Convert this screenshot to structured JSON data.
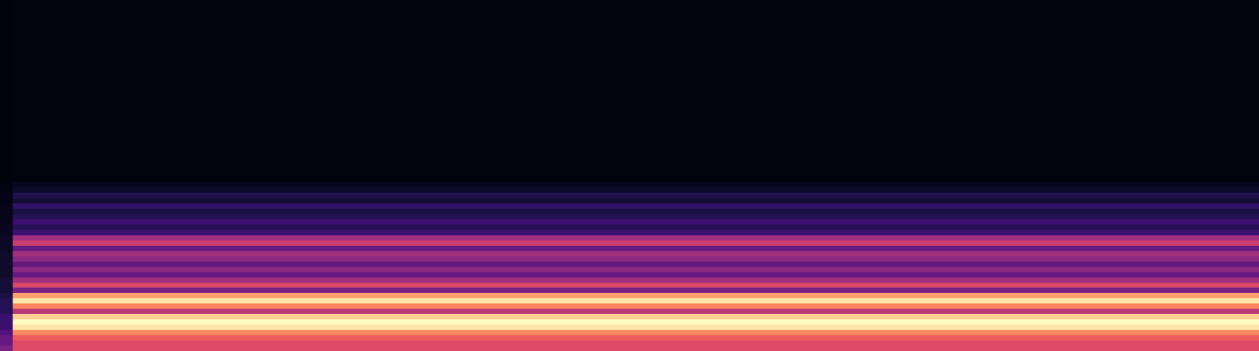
{
  "chart_data": {
    "type": "heatmap",
    "color": "magma",
    "tick_labels": false,
    "grid": false,
    "xlim": [
      0,
      100
    ],
    "ylim": [
      0,
      100
    ],
    "x": [
      0,
      1,
      100
    ],
    "y": [
      0,
      1.5,
      3,
      4.5,
      6,
      7.5,
      9,
      10.5,
      12,
      13.5,
      15,
      16.5,
      18,
      19.5,
      21,
      22.5,
      24,
      25.5,
      27,
      28.5,
      30,
      31.5,
      33,
      34.5,
      36,
      37.5,
      39,
      40.5,
      42,
      43.5,
      45,
      46.5,
      48,
      100
    ],
    "color_range": [
      0,
      1
    ],
    "cells": [
      [
        0.35,
        0.6
      ],
      [
        0.3,
        0.6
      ],
      [
        0.3,
        0.65
      ],
      [
        0.25,
        0.75
      ],
      [
        0.2,
        0.95
      ],
      [
        0.2,
        1.0
      ],
      [
        0.2,
        0.9
      ],
      [
        0.15,
        0.5
      ],
      [
        0.15,
        0.75
      ],
      [
        0.15,
        0.95
      ],
      [
        0.12,
        0.8
      ],
      [
        0.1,
        0.35
      ],
      [
        0.1,
        0.6
      ],
      [
        0.1,
        0.45
      ],
      [
        0.08,
        0.3
      ],
      [
        0.08,
        0.4
      ],
      [
        0.08,
        0.3
      ],
      [
        0.08,
        0.4
      ],
      [
        0.08,
        0.45
      ],
      [
        0.07,
        0.3
      ],
      [
        0.07,
        0.55
      ],
      [
        0.07,
        0.45
      ],
      [
        0.06,
        0.2
      ],
      [
        0.06,
        0.15
      ],
      [
        0.05,
        0.2
      ],
      [
        0.05,
        0.15
      ],
      [
        0.05,
        0.12
      ],
      [
        0.05,
        0.18
      ],
      [
        0.04,
        0.1
      ],
      [
        0.04,
        0.14
      ],
      [
        0.03,
        0.08
      ],
      [
        0.03,
        0.06
      ],
      [
        0.02,
        0.03
      ]
    ]
  }
}
